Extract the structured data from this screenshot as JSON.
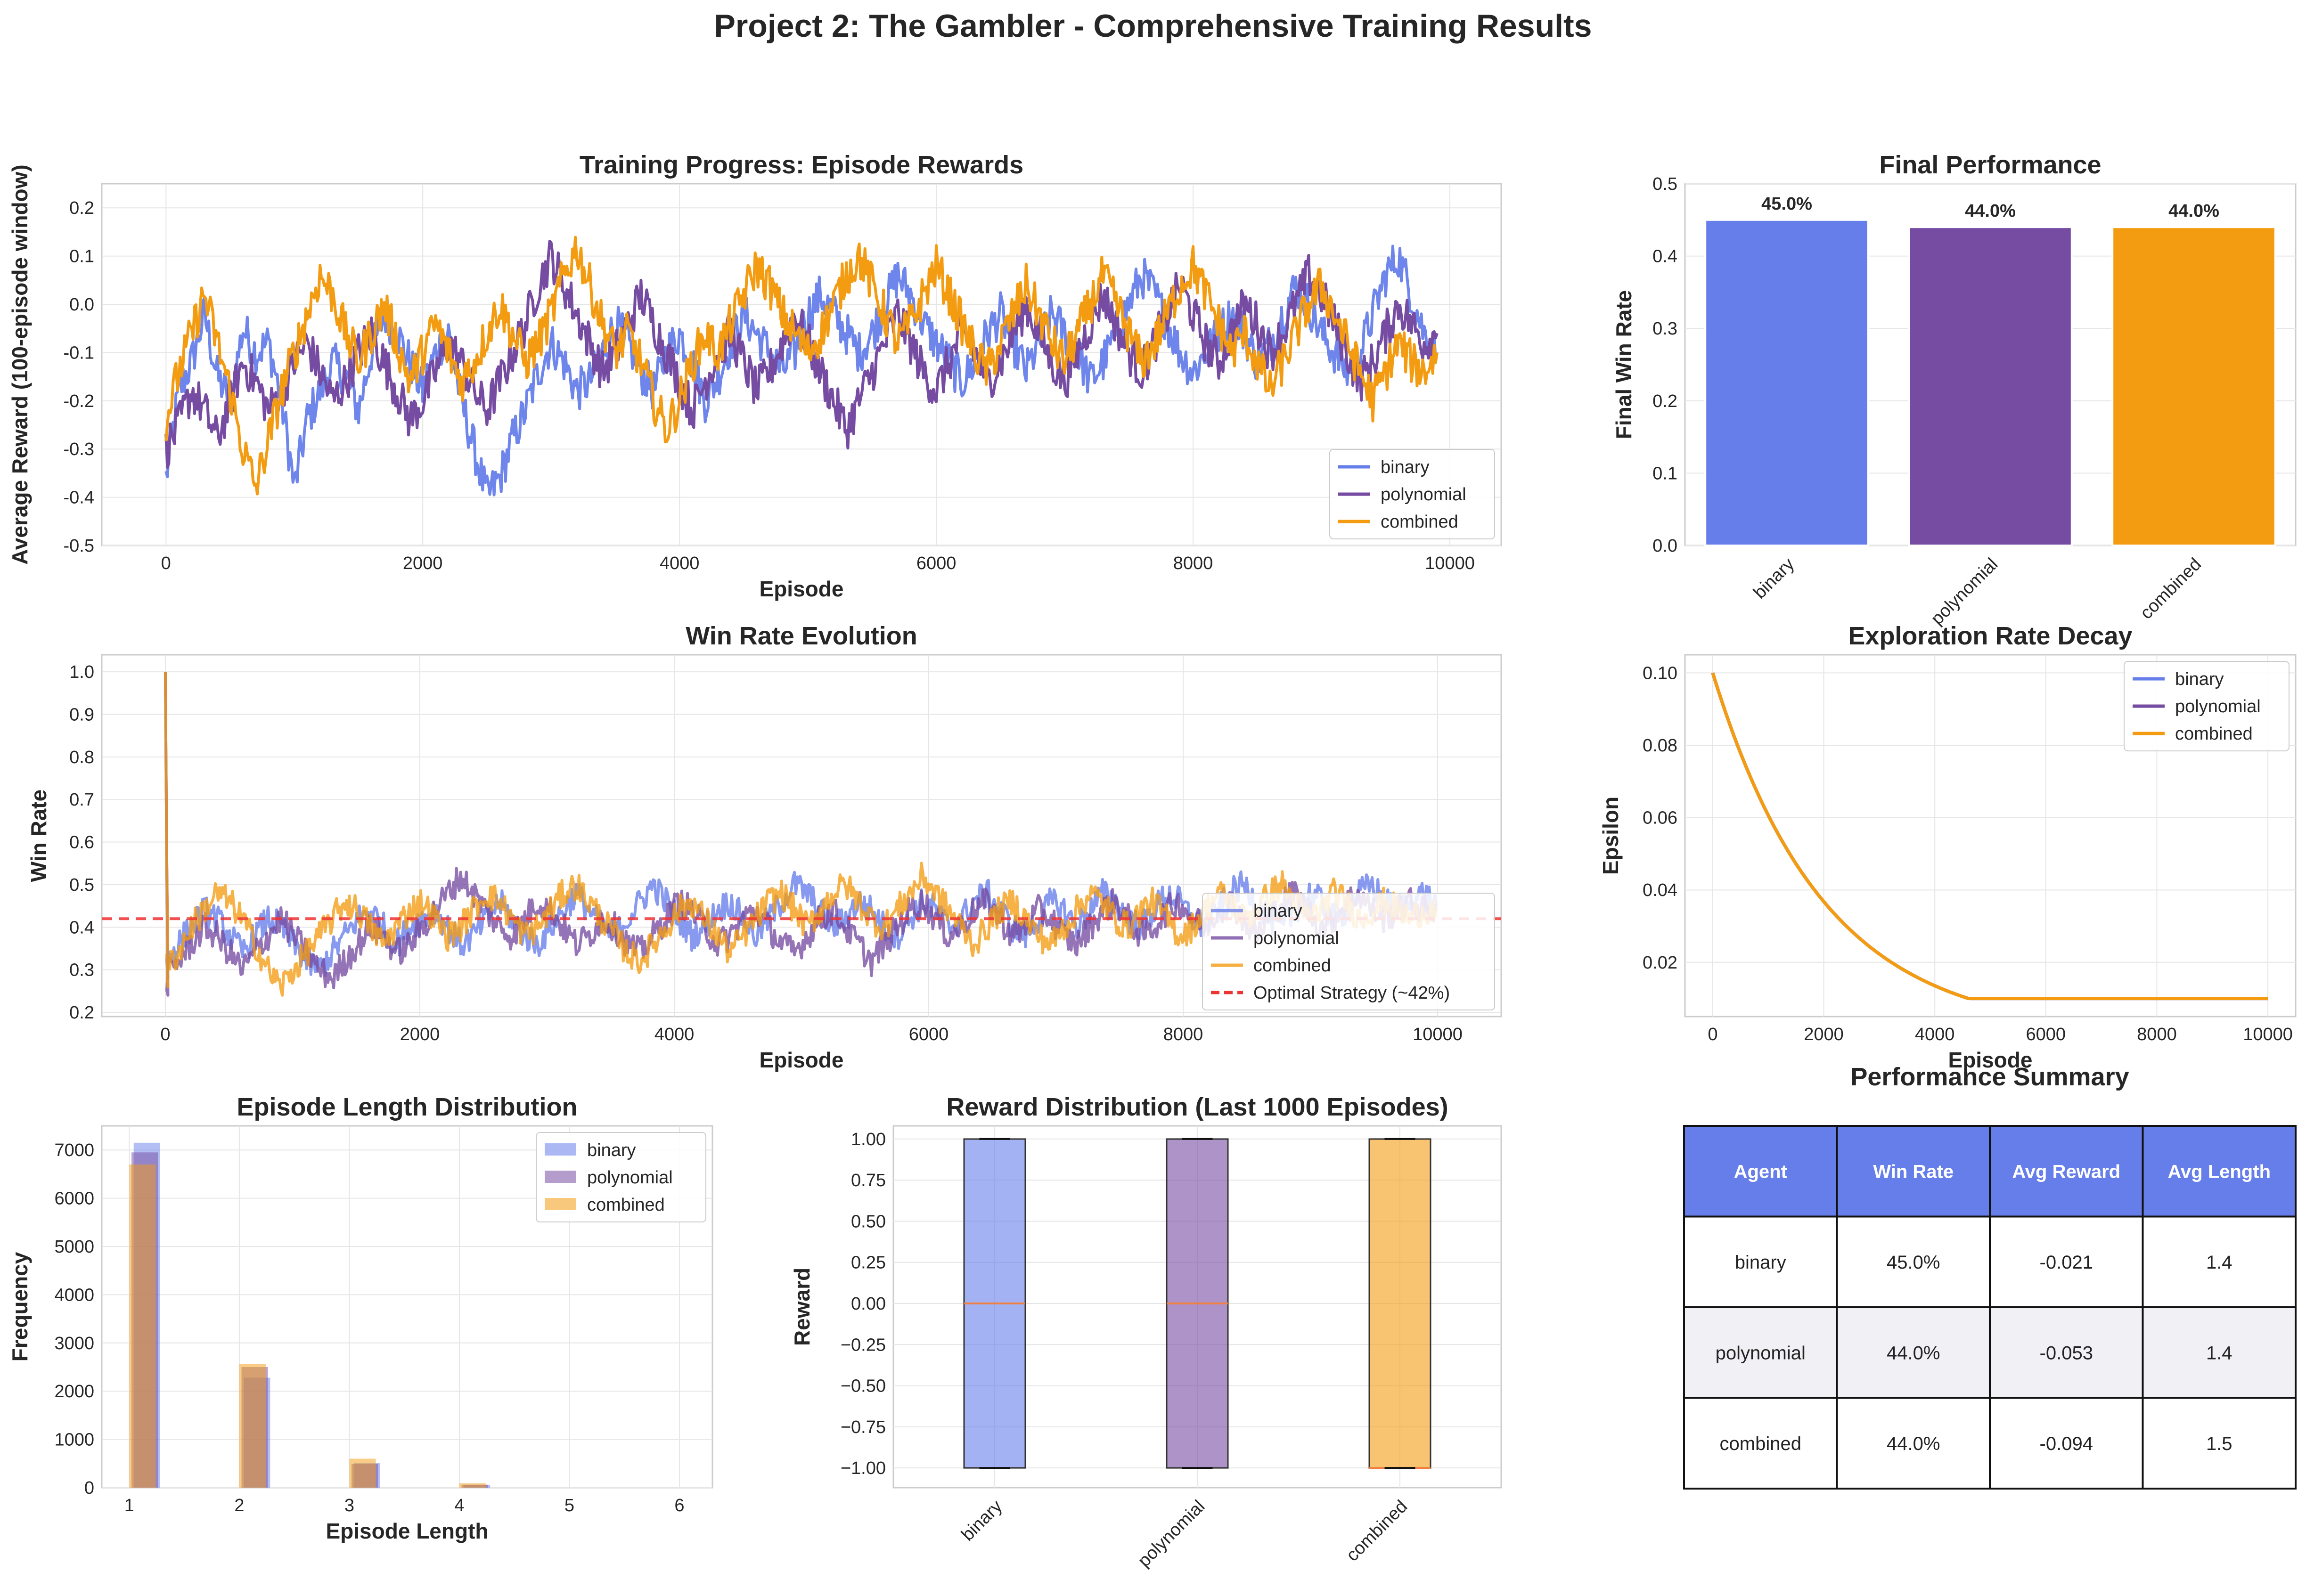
{
  "figure": {
    "title": "Project 2: The Gambler - Comprehensive Training Results"
  },
  "colors": {
    "binary": "#667eea",
    "polynomial": "#764ba2",
    "combined": "#f39c12",
    "optimal": "#ee3333",
    "grid": "#e6e6e6",
    "axes": "#cccccc",
    "table_header": "#667eea",
    "table_stripe": "#f1f1f5"
  },
  "chart_data": [
    {
      "id": "rewards",
      "type": "line",
      "title": "Training Progress: Episode Rewards",
      "xlabel": "Episode",
      "ylabel": "Average Reward (100-episode window)",
      "xlim": [
        -500,
        10400
      ],
      "ylim": [
        -0.5,
        0.25
      ],
      "xticks": [
        0,
        2000,
        4000,
        6000,
        8000,
        10000
      ],
      "yticks": [
        -0.5,
        -0.4,
        -0.3,
        -0.2,
        -0.1,
        0.0,
        0.1,
        0.2
      ],
      "ytick_labels": [
        "-0.5",
        "-0.4",
        "-0.3",
        "-0.2",
        "-0.1",
        "0.0",
        "0.1",
        "0.2"
      ],
      "grid": true,
      "legend": "lower-right",
      "smoothing_window": 100,
      "series": [
        {
          "name": "binary",
          "values": [
            -0.36,
            -0.18,
            -0.12,
            -0.02,
            -0.15,
            -0.2,
            -0.05,
            -0.1,
            -0.08,
            -0.2,
            -0.38,
            -0.24,
            -0.18,
            -0.12,
            -0.15,
            -0.22,
            -0.1,
            -0.02,
            -0.06,
            -0.12,
            -0.18,
            -0.1,
            -0.06,
            -0.2,
            -0.3,
            -0.4,
            -0.36,
            -0.28,
            -0.22,
            -0.14,
            -0.08,
            -0.12,
            -0.18,
            -0.16,
            -0.1,
            -0.04,
            -0.08,
            -0.14,
            -0.18,
            -0.1,
            -0.06,
            -0.12,
            -0.2,
            -0.15,
            -0.08,
            -0.02,
            -0.06,
            -0.1,
            -0.14,
            -0.1,
            -0.02,
            0.02,
            -0.02,
            -0.06,
            -0.1,
            -0.06,
            0.0,
            0.06,
            0.02,
            -0.04,
            -0.08,
            -0.12,
            -0.16,
            -0.12,
            -0.06,
            -0.02,
            -0.08,
            -0.14,
            -0.08,
            -0.02,
            -0.06,
            -0.1,
            -0.16,
            -0.12,
            -0.06,
            0.0,
            0.06,
            0.02,
            -0.04,
            -0.1,
            -0.14,
            -0.1,
            -0.06,
            -0.02,
            -0.06,
            -0.12,
            -0.08,
            -0.02,
            0.04,
            0.0,
            -0.06,
            -0.1,
            -0.14,
            -0.1,
            -0.02,
            0.06,
            0.1,
            0.02,
            -0.06,
            -0.1
          ]
        },
        {
          "name": "polynomial",
          "values": [
            -0.3,
            -0.25,
            -0.18,
            -0.22,
            -0.28,
            -0.2,
            -0.12,
            -0.16,
            -0.22,
            -0.18,
            -0.12,
            -0.08,
            -0.14,
            -0.2,
            -0.16,
            -0.1,
            -0.06,
            -0.12,
            -0.18,
            -0.24,
            -0.2,
            -0.14,
            -0.08,
            -0.12,
            -0.18,
            -0.22,
            -0.16,
            -0.1,
            -0.04,
            0.04,
            0.1,
            0.04,
            -0.02,
            -0.08,
            -0.14,
            -0.1,
            -0.04,
            0.02,
            -0.04,
            -0.1,
            -0.16,
            -0.22,
            -0.16,
            -0.1,
            -0.06,
            -0.12,
            -0.18,
            -0.14,
            -0.08,
            -0.02,
            -0.08,
            -0.14,
            -0.2,
            -0.26,
            -0.2,
            -0.14,
            -0.08,
            -0.02,
            -0.08,
            -0.14,
            -0.18,
            -0.12,
            -0.06,
            -0.1,
            -0.16,
            -0.12,
            -0.06,
            0.0,
            -0.06,
            -0.12,
            -0.16,
            -0.1,
            -0.04,
            0.02,
            -0.04,
            -0.1,
            -0.14,
            -0.08,
            -0.02,
            0.04,
            -0.02,
            -0.08,
            -0.12,
            -0.06,
            0.0,
            -0.04,
            -0.1,
            -0.06,
            0.0,
            0.06,
            0.02,
            -0.04,
            -0.1,
            -0.16,
            -0.12,
            -0.06,
            0.0,
            -0.04,
            -0.08,
            -0.06
          ]
        },
        {
          "name": "combined",
          "values": [
            -0.24,
            -0.14,
            -0.06,
            0.02,
            -0.08,
            -0.18,
            -0.3,
            -0.38,
            -0.28,
            -0.18,
            -0.1,
            -0.02,
            0.06,
            0.02,
            -0.06,
            -0.12,
            -0.06,
            0.0,
            -0.08,
            -0.16,
            -0.1,
            -0.04,
            -0.1,
            -0.16,
            -0.12,
            -0.06,
            0.0,
            -0.06,
            -0.12,
            -0.08,
            -0.02,
            0.06,
            0.12,
            0.04,
            -0.04,
            -0.1,
            -0.06,
            -0.12,
            -0.2,
            -0.26,
            -0.2,
            -0.12,
            -0.06,
            -0.1,
            -0.04,
            0.02,
            0.08,
            0.04,
            -0.02,
            -0.06,
            -0.1,
            -0.06,
            0.0,
            0.06,
            0.1,
            0.04,
            -0.02,
            -0.08,
            -0.04,
            0.02,
            0.08,
            0.02,
            -0.04,
            -0.1,
            -0.14,
            -0.08,
            -0.02,
            0.04,
            -0.02,
            -0.08,
            -0.12,
            -0.06,
            0.0,
            0.06,
            0.0,
            -0.06,
            -0.12,
            -0.08,
            -0.02,
            0.04,
            0.08,
            0.02,
            -0.04,
            -0.1,
            -0.06,
            -0.12,
            -0.18,
            -0.12,
            -0.06,
            0.0,
            0.04,
            -0.02,
            -0.08,
            -0.14,
            -0.2,
            -0.14,
            -0.08,
            -0.12,
            -0.14,
            -0.1
          ]
        }
      ]
    },
    {
      "id": "final_perf",
      "type": "bar",
      "title": "Final Performance",
      "xlabel": "",
      "ylabel": "Final Win Rate",
      "categories": [
        "binary",
        "polynomial",
        "combined"
      ],
      "values": [
        0.45,
        0.44,
        0.44
      ],
      "value_labels": [
        "45.0%",
        "44.0%",
        "44.0%"
      ],
      "ylim": [
        0,
        0.5
      ],
      "yticks": [
        0.0,
        0.1,
        0.2,
        0.3,
        0.4,
        0.5
      ],
      "ytick_labels": [
        "0.0",
        "0.1",
        "0.2",
        "0.3",
        "0.4",
        "0.5"
      ],
      "grid": true
    },
    {
      "id": "winrate",
      "type": "line",
      "title": "Win Rate Evolution",
      "xlabel": "Episode",
      "ylabel": "Win Rate",
      "xlim": [
        -500,
        10500
      ],
      "ylim": [
        0.19,
        1.04
      ],
      "xticks": [
        0,
        2000,
        4000,
        6000,
        8000,
        10000
      ],
      "yticks": [
        0.2,
        0.3,
        0.4,
        0.5,
        0.6,
        0.7,
        0.8,
        0.9,
        1.0
      ],
      "ytick_labels": [
        "0.2",
        "0.3",
        "0.4",
        "0.5",
        "0.6",
        "0.7",
        "0.8",
        "0.9",
        "1.0"
      ],
      "grid": true,
      "legend": "lower-right",
      "initial_value": 1.0,
      "reference_line": {
        "label": "Optimal Strategy (~42%)",
        "value": 0.42
      },
      "series": [
        {
          "name": "binary",
          "values": [
            0.32,
            0.36,
            0.4,
            0.44,
            0.42,
            0.38,
            0.34,
            0.38,
            0.42,
            0.4,
            0.36,
            0.32,
            0.3,
            0.34,
            0.38,
            0.42,
            0.44,
            0.4,
            0.36,
            0.4,
            0.42,
            0.44,
            0.4,
            0.36,
            0.38,
            0.42,
            0.46,
            0.42,
            0.38,
            0.36,
            0.4,
            0.44,
            0.48,
            0.44,
            0.4,
            0.38,
            0.42,
            0.46,
            0.5,
            0.46,
            0.42,
            0.38,
            0.4,
            0.44,
            0.46,
            0.42,
            0.38,
            0.42,
            0.46,
            0.5,
            0.48,
            0.44,
            0.4,
            0.42,
            0.46,
            0.44,
            0.4,
            0.38,
            0.42,
            0.46,
            0.44,
            0.4,
            0.42,
            0.46,
            0.48,
            0.44,
            0.4,
            0.38,
            0.42,
            0.46,
            0.44,
            0.4,
            0.44,
            0.48,
            0.46,
            0.42,
            0.4,
            0.44,
            0.48,
            0.46,
            0.42,
            0.4,
            0.44,
            0.48,
            0.5,
            0.46,
            0.42,
            0.4,
            0.44,
            0.48,
            0.46,
            0.42,
            0.44,
            0.48,
            0.5,
            0.46,
            0.44,
            0.46,
            0.48,
            0.45
          ]
        },
        {
          "name": "polynomial",
          "values": [
            0.28,
            0.32,
            0.36,
            0.4,
            0.38,
            0.34,
            0.3,
            0.34,
            0.38,
            0.42,
            0.38,
            0.34,
            0.3,
            0.28,
            0.32,
            0.36,
            0.4,
            0.38,
            0.34,
            0.36,
            0.4,
            0.44,
            0.48,
            0.52,
            0.48,
            0.44,
            0.4,
            0.38,
            0.42,
            0.46,
            0.44,
            0.4,
            0.36,
            0.38,
            0.42,
            0.4,
            0.36,
            0.34,
            0.38,
            0.42,
            0.46,
            0.44,
            0.4,
            0.36,
            0.38,
            0.42,
            0.44,
            0.4,
            0.36,
            0.34,
            0.38,
            0.42,
            0.44,
            0.4,
            0.36,
            0.32,
            0.36,
            0.4,
            0.44,
            0.46,
            0.42,
            0.38,
            0.4,
            0.44,
            0.46,
            0.42,
            0.38,
            0.4,
            0.44,
            0.42,
            0.38,
            0.36,
            0.4,
            0.44,
            0.46,
            0.42,
            0.38,
            0.4,
            0.44,
            0.46,
            0.42,
            0.4,
            0.44,
            0.46,
            0.42,
            0.38,
            0.42,
            0.46,
            0.48,
            0.44,
            0.4,
            0.42,
            0.46,
            0.48,
            0.44,
            0.42,
            0.44,
            0.46,
            0.44,
            0.44
          ]
        },
        {
          "name": "combined",
          "values": [
            0.3,
            0.34,
            0.4,
            0.44,
            0.48,
            0.46,
            0.42,
            0.36,
            0.3,
            0.26,
            0.3,
            0.34,
            0.38,
            0.42,
            0.46,
            0.44,
            0.4,
            0.36,
            0.4,
            0.44,
            0.46,
            0.42,
            0.38,
            0.4,
            0.44,
            0.48,
            0.46,
            0.42,
            0.38,
            0.4,
            0.44,
            0.48,
            0.5,
            0.46,
            0.42,
            0.38,
            0.34,
            0.32,
            0.36,
            0.4,
            0.44,
            0.46,
            0.42,
            0.38,
            0.34,
            0.38,
            0.42,
            0.46,
            0.48,
            0.44,
            0.4,
            0.44,
            0.48,
            0.5,
            0.46,
            0.42,
            0.4,
            0.44,
            0.48,
            0.52,
            0.48,
            0.44,
            0.4,
            0.36,
            0.4,
            0.44,
            0.46,
            0.42,
            0.38,
            0.36,
            0.4,
            0.44,
            0.48,
            0.46,
            0.42,
            0.4,
            0.44,
            0.46,
            0.42,
            0.38,
            0.4,
            0.44,
            0.48,
            0.46,
            0.42,
            0.44,
            0.48,
            0.5,
            0.46,
            0.42,
            0.44,
            0.48,
            0.46,
            0.42,
            0.44,
            0.46,
            0.44,
            0.42,
            0.44,
            0.44
          ]
        }
      ]
    },
    {
      "id": "epsilon",
      "type": "line",
      "title": "Exploration Rate Decay",
      "xlabel": "Episode",
      "ylabel": "Epsilon",
      "xlim": [
        -500,
        10500
      ],
      "ylim": [
        0.005,
        0.105
      ],
      "xticks": [
        0,
        2000,
        4000,
        6000,
        8000,
        10000
      ],
      "yticks": [
        0.02,
        0.04,
        0.06,
        0.08,
        0.1
      ],
      "ytick_labels": [
        "0.02",
        "0.04",
        "0.06",
        "0.08",
        "0.10"
      ],
      "grid": true,
      "legend": "top-right",
      "epsilon_start": 0.1,
      "epsilon_min": 0.01,
      "epsilon_decay": 0.9995,
      "x_max": 10000,
      "series": [
        {
          "name": "binary"
        },
        {
          "name": "polynomial"
        },
        {
          "name": "combined"
        }
      ]
    },
    {
      "id": "lengths",
      "type": "bar",
      "title": "Episode Length Distribution",
      "xlabel": "Episode Length",
      "ylabel": "Frequency",
      "xlim": [
        0.75,
        6.3
      ],
      "ylim": [
        0,
        7500
      ],
      "xticks": [
        1,
        2,
        3,
        4,
        5,
        6
      ],
      "yticks": [
        0,
        1000,
        2000,
        3000,
        4000,
        5000,
        6000,
        7000
      ],
      "grid": true,
      "legend": "top-right",
      "series": [
        {
          "name": "binary",
          "x": [
            1,
            2,
            3,
            4
          ],
          "values": [
            7150,
            2280,
            510,
            60
          ]
        },
        {
          "name": "polynomial",
          "x": [
            1,
            2,
            3,
            4
          ],
          "values": [
            6950,
            2500,
            490,
            60
          ]
        },
        {
          "name": "combined",
          "x": [
            1,
            2,
            3,
            4
          ],
          "values": [
            6700,
            2560,
            600,
            90
          ]
        }
      ]
    },
    {
      "id": "reward_box",
      "type": "box",
      "title": "Reward Distribution (Last 1000 Episodes)",
      "xlabel": "",
      "ylabel": "Reward",
      "categories": [
        "binary",
        "polynomial",
        "combined"
      ],
      "ylim": [
        -1.12,
        1.08
      ],
      "yticks": [
        -1.0,
        -0.75,
        -0.5,
        -0.25,
        0.0,
        0.25,
        0.5,
        0.75,
        1.0
      ],
      "ytick_labels": [
        "−1.00",
        "−0.75",
        "−0.50",
        "−0.25",
        "0.00",
        "0.25",
        "0.50",
        "0.75",
        "1.00"
      ],
      "grid": true,
      "boxes": [
        {
          "name": "binary",
          "q1": -1.0,
          "median": 0.0,
          "q3": 1.0,
          "min": -1.0,
          "max": 1.0
        },
        {
          "name": "polynomial",
          "q1": -1.0,
          "median": 0.0,
          "q3": 1.0,
          "min": -1.0,
          "max": 1.0
        },
        {
          "name": "combined",
          "q1": -1.0,
          "median": -1.0,
          "q3": 1.0,
          "min": -1.0,
          "max": 1.0
        }
      ]
    },
    {
      "id": "summary",
      "type": "table",
      "title": "Performance Summary",
      "columns": [
        "Agent",
        "Win Rate",
        "Avg Reward",
        "Avg Length"
      ],
      "rows": [
        [
          "binary",
          "45.0%",
          "-0.021",
          "1.4"
        ],
        [
          "polynomial",
          "44.0%",
          "-0.053",
          "1.4"
        ],
        [
          "combined",
          "44.0%",
          "-0.094",
          "1.5"
        ]
      ]
    }
  ]
}
